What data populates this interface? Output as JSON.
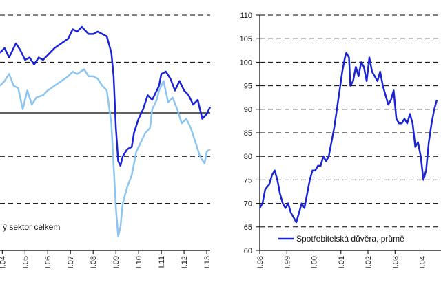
{
  "colors": {
    "dark": "#1a24d6",
    "light": "#8cc6f0",
    "grid": "#000000"
  },
  "chart_data": [
    {
      "type": "line",
      "title": "",
      "xlabel": "",
      "ylabel": "",
      "grid": true,
      "xrange": [
        2003.9,
        2013.15
      ],
      "ylim": [
        -60,
        40
      ],
      "x_ticks": [
        {
          "label": "I.04",
          "x": 2004
        },
        {
          "label": "I.05",
          "x": 2005
        },
        {
          "label": "I.06",
          "x": 2006
        },
        {
          "label": "I.07",
          "x": 2007
        },
        {
          "label": "I.08",
          "x": 2008
        },
        {
          "label": "I.09",
          "x": 2009
        },
        {
          "label": "I.10",
          "x": 2010
        },
        {
          "label": "I.11",
          "x": 2011
        },
        {
          "label": "I.12",
          "x": 2012
        },
        {
          "label": "I.13",
          "x": 2013
        }
      ],
      "legend": {
        "label": "ý sektor celkem",
        "position": "bottom-left"
      },
      "series": [
        {
          "key": "dark",
          "points": [
            [
              2003.9,
              24
            ],
            [
              2004.1,
              26
            ],
            [
              2004.3,
              22
            ],
            [
              2004.6,
              28
            ],
            [
              2004.8,
              25
            ],
            [
              2005.0,
              21
            ],
            [
              2005.2,
              22
            ],
            [
              2005.4,
              19
            ],
            [
              2005.6,
              22
            ],
            [
              2005.8,
              21
            ],
            [
              2006.0,
              23
            ],
            [
              2006.3,
              26
            ],
            [
              2006.6,
              28
            ],
            [
              2006.9,
              30
            ],
            [
              2007.1,
              34
            ],
            [
              2007.3,
              33
            ],
            [
              2007.5,
              35
            ],
            [
              2007.8,
              32
            ],
            [
              2008.0,
              32
            ],
            [
              2008.2,
              33
            ],
            [
              2008.4,
              32
            ],
            [
              2008.6,
              31
            ],
            [
              2008.8,
              24
            ],
            [
              2008.9,
              14
            ],
            [
              2009.0,
              -8
            ],
            [
              2009.1,
              -22
            ],
            [
              2009.2,
              -24
            ],
            [
              2009.3,
              -20
            ],
            [
              2009.5,
              -17
            ],
            [
              2009.7,
              -16
            ],
            [
              2009.8,
              -10
            ],
            [
              2010.0,
              -4
            ],
            [
              2010.2,
              0
            ],
            [
              2010.4,
              6
            ],
            [
              2010.6,
              4
            ],
            [
              2010.8,
              8
            ],
            [
              2010.9,
              10
            ],
            [
              2011.0,
              15
            ],
            [
              2011.2,
              16
            ],
            [
              2011.4,
              13
            ],
            [
              2011.6,
              8
            ],
            [
              2011.8,
              12
            ],
            [
              2012.0,
              8
            ],
            [
              2012.2,
              6
            ],
            [
              2012.4,
              2
            ],
            [
              2012.6,
              4
            ],
            [
              2012.8,
              -4
            ],
            [
              2013.0,
              -2
            ],
            [
              2013.15,
              1
            ]
          ]
        },
        {
          "key": "light",
          "points": [
            [
              2003.9,
              10
            ],
            [
              2004.1,
              12
            ],
            [
              2004.3,
              15
            ],
            [
              2004.5,
              10
            ],
            [
              2004.7,
              9
            ],
            [
              2004.9,
              0
            ],
            [
              2005.1,
              8
            ],
            [
              2005.3,
              2
            ],
            [
              2005.5,
              5
            ],
            [
              2005.8,
              6
            ],
            [
              2006.0,
              8
            ],
            [
              2006.3,
              10
            ],
            [
              2006.6,
              12
            ],
            [
              2006.9,
              14
            ],
            [
              2007.1,
              16
            ],
            [
              2007.3,
              15
            ],
            [
              2007.6,
              17
            ],
            [
              2007.8,
              14
            ],
            [
              2008.0,
              14
            ],
            [
              2008.2,
              13
            ],
            [
              2008.4,
              10
            ],
            [
              2008.6,
              8
            ],
            [
              2008.8,
              -6
            ],
            [
              2008.9,
              -24
            ],
            [
              2009.0,
              -42
            ],
            [
              2009.1,
              -54
            ],
            [
              2009.2,
              -50
            ],
            [
              2009.3,
              -40
            ],
            [
              2009.5,
              -33
            ],
            [
              2009.7,
              -28
            ],
            [
              2009.9,
              -18
            ],
            [
              2010.1,
              -14
            ],
            [
              2010.3,
              -10
            ],
            [
              2010.5,
              -8
            ],
            [
              2010.6,
              0
            ],
            [
              2010.8,
              4
            ],
            [
              2010.9,
              8
            ],
            [
              2011.1,
              12
            ],
            [
              2011.3,
              3
            ],
            [
              2011.5,
              5
            ],
            [
              2011.7,
              0
            ],
            [
              2011.9,
              -6
            ],
            [
              2012.1,
              -4
            ],
            [
              2012.3,
              -8
            ],
            [
              2012.5,
              -14
            ],
            [
              2012.7,
              -20
            ],
            [
              2012.9,
              -23
            ],
            [
              2013.0,
              -18
            ],
            [
              2013.15,
              -17
            ]
          ]
        }
      ]
    },
    {
      "type": "line",
      "title": "",
      "xlabel": "",
      "ylabel": "",
      "grid": true,
      "xrange": [
        1998,
        2004.7
      ],
      "ylim": [
        60,
        110
      ],
      "y_ticks": [
        60,
        65,
        70,
        75,
        80,
        85,
        90,
        95,
        100,
        105,
        110
      ],
      "x_ticks": [
        {
          "label": "I.98",
          "x": 1998
        },
        {
          "label": "I.99",
          "x": 1999
        },
        {
          "label": "I.00",
          "x": 2000
        },
        {
          "label": "I.01",
          "x": 2001
        },
        {
          "label": "I.02",
          "x": 2002
        },
        {
          "label": "I.03",
          "x": 2003
        },
        {
          "label": "I.04",
          "x": 2004
        }
      ],
      "legend": {
        "label": "Spotřebitelská důvěra, průmě",
        "position": "bottom-right"
      },
      "series": [
        {
          "key": "dark",
          "points": [
            [
              1998.0,
              69
            ],
            [
              1998.1,
              70
            ],
            [
              1998.2,
              73
            ],
            [
              1998.35,
              74
            ],
            [
              1998.45,
              76
            ],
            [
              1998.55,
              77
            ],
            [
              1998.65,
              75
            ],
            [
              1998.75,
              72
            ],
            [
              1998.85,
              70
            ],
            [
              1998.95,
              69
            ],
            [
              1999.05,
              70
            ],
            [
              1999.15,
              68
            ],
            [
              1999.25,
              67
            ],
            [
              1999.35,
              66
            ],
            [
              1999.45,
              68
            ],
            [
              1999.55,
              70
            ],
            [
              1999.65,
              69
            ],
            [
              1999.75,
              72
            ],
            [
              1999.85,
              75
            ],
            [
              1999.95,
              77
            ],
            [
              2000.05,
              77
            ],
            [
              2000.15,
              78
            ],
            [
              2000.25,
              78
            ],
            [
              2000.35,
              80
            ],
            [
              2000.45,
              79
            ],
            [
              2000.55,
              80
            ],
            [
              2000.65,
              83
            ],
            [
              2000.75,
              86
            ],
            [
              2000.85,
              90
            ],
            [
              2000.95,
              94
            ],
            [
              2001.05,
              98
            ],
            [
              2001.15,
              101
            ],
            [
              2001.2,
              102
            ],
            [
              2001.3,
              101
            ],
            [
              2001.35,
              95
            ],
            [
              2001.45,
              96
            ],
            [
              2001.55,
              99
            ],
            [
              2001.65,
              97
            ],
            [
              2001.75,
              100
            ],
            [
              2001.85,
              99
            ],
            [
              2001.95,
              96
            ],
            [
              2002.05,
              101
            ],
            [
              2002.15,
              98
            ],
            [
              2002.25,
              97
            ],
            [
              2002.35,
              96
            ],
            [
              2002.45,
              98
            ],
            [
              2002.55,
              95
            ],
            [
              2002.65,
              93
            ],
            [
              2002.75,
              91
            ],
            [
              2002.85,
              92
            ],
            [
              2002.95,
              94
            ],
            [
              2003.05,
              88
            ],
            [
              2003.15,
              87
            ],
            [
              2003.25,
              87
            ],
            [
              2003.35,
              88
            ],
            [
              2003.45,
              87
            ],
            [
              2003.55,
              89
            ],
            [
              2003.65,
              87
            ],
            [
              2003.75,
              82
            ],
            [
              2003.85,
              83
            ],
            [
              2003.95,
              80
            ],
            [
              2004.05,
              75
            ],
            [
              2004.15,
              77
            ],
            [
              2004.25,
              83
            ],
            [
              2004.35,
              87
            ],
            [
              2004.45,
              90
            ],
            [
              2004.55,
              92
            ]
          ]
        }
      ]
    }
  ]
}
